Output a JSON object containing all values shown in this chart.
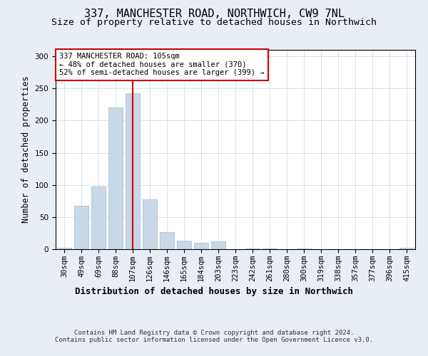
{
  "title": "337, MANCHESTER ROAD, NORTHWICH, CW9 7NL",
  "subtitle": "Size of property relative to detached houses in Northwich",
  "xlabel": "Distribution of detached houses by size in Northwich",
  "ylabel": "Number of detached properties",
  "categories": [
    "30sqm",
    "49sqm",
    "69sqm",
    "88sqm",
    "107sqm",
    "126sqm",
    "146sqm",
    "165sqm",
    "184sqm",
    "203sqm",
    "223sqm",
    "242sqm",
    "261sqm",
    "280sqm",
    "300sqm",
    "319sqm",
    "338sqm",
    "357sqm",
    "377sqm",
    "396sqm",
    "415sqm"
  ],
  "values": [
    2,
    67,
    97,
    220,
    242,
    78,
    27,
    13,
    10,
    12,
    0,
    1,
    1,
    0,
    1,
    0,
    0,
    0,
    0,
    0,
    2
  ],
  "bar_color": "#c8d8e8",
  "bar_edgecolor": "#a0b8cc",
  "vline_x": 4,
  "vline_color": "#cc0000",
  "annotation_text": "337 MANCHESTER ROAD: 105sqm\n← 48% of detached houses are smaller (370)\n52% of semi-detached houses are larger (399) →",
  "annotation_box_edgecolor": "#cc0000",
  "annotation_box_facecolor": "#ffffff",
  "ylim": [
    0,
    310
  ],
  "yticks": [
    0,
    50,
    100,
    150,
    200,
    250,
    300
  ],
  "footnote": "Contains HM Land Registry data © Crown copyright and database right 2024.\nContains public sector information licensed under the Open Government Licence v3.0.",
  "bg_color": "#e8eef4",
  "plot_bg_color": "#ffffff",
  "title_fontsize": 11,
  "subtitle_fontsize": 9.5,
  "axis_label_fontsize": 8.5,
  "tick_fontsize": 7.5,
  "footnote_fontsize": 6.5
}
